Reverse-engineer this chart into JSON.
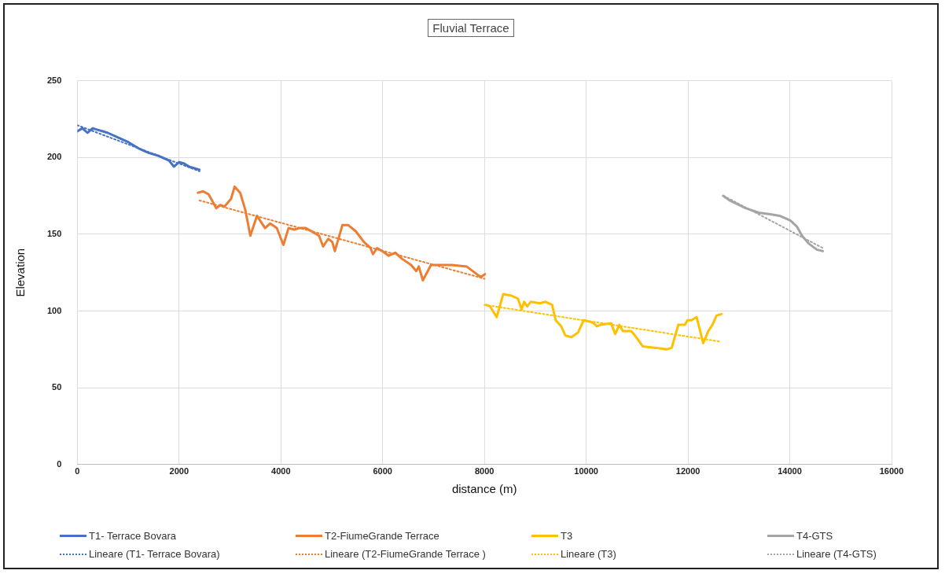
{
  "chart_data": {
    "type": "line",
    "title": "Fluvial Terrace",
    "xlabel": "distance (m)",
    "ylabel": "Elevation",
    "xlim": [
      0,
      16000
    ],
    "xticks": [
      0,
      2000,
      4000,
      6000,
      8000,
      10000,
      12000,
      14000,
      16000
    ],
    "ylim": [
      0,
      250
    ],
    "yticks": [
      0,
      50,
      100,
      150,
      200,
      250
    ],
    "grid": true,
    "legend": "bottom",
    "marker": "none",
    "line_style": "solid",
    "series": [
      {
        "name": "T1- Terrace Bovara",
        "color": "#4472c4",
        "x": [
          0,
          100,
          200,
          300,
          400,
          500,
          600,
          800,
          1000,
          1200,
          1400,
          1600,
          1800,
          1900,
          2000,
          2100,
          2200,
          2400
        ],
        "values": [
          217,
          219,
          216,
          219,
          218,
          217,
          216,
          213,
          210,
          206,
          203,
          201,
          198,
          194,
          197,
          196,
          194,
          192
        ]
      },
      {
        "name": "T2-FiumeGrande Terrace",
        "color": "#ed7d31",
        "x": [
          2370,
          2470,
          2580,
          2730,
          2810,
          2890,
          3020,
          3090,
          3200,
          3300,
          3400,
          3530,
          3690,
          3790,
          3920,
          4050,
          4150,
          4260,
          4360,
          4490,
          4650,
          4750,
          4830,
          4930,
          5010,
          5060,
          5210,
          5320,
          5470,
          5630,
          5760,
          5810,
          5890,
          5990,
          6120,
          6250,
          6380,
          6560,
          6660,
          6710,
          6790,
          6950,
          7130,
          7360,
          7650,
          7850,
          7930,
          8010
        ],
        "values": [
          177,
          178,
          176,
          167,
          169,
          168,
          173,
          181,
          177,
          166,
          149,
          162,
          154,
          157,
          154,
          143,
          154,
          153,
          154,
          154,
          151,
          149,
          142,
          147,
          145,
          139,
          156,
          156,
          152,
          145,
          141,
          137,
          141,
          139,
          136,
          138,
          134,
          130,
          126,
          129,
          120,
          130,
          130,
          130,
          129,
          124,
          122,
          124
        ]
      },
      {
        "name": "T3",
        "color": "#ffc000",
        "x": [
          8030,
          8110,
          8240,
          8370,
          8530,
          8660,
          8730,
          8780,
          8840,
          8910,
          9090,
          9200,
          9330,
          9400,
          9510,
          9590,
          9710,
          9840,
          9950,
          10080,
          10150,
          10210,
          10280,
          10490,
          10570,
          10650,
          10720,
          10880,
          10960,
          11110,
          11370,
          11580,
          11680,
          11810,
          11940,
          11990,
          12070,
          12170,
          12300,
          12400,
          12480,
          12560,
          12660
        ],
        "values": [
          104,
          103,
          96,
          111,
          110,
          108,
          101,
          106,
          103,
          106,
          105,
          106,
          104,
          94,
          90,
          84,
          83,
          86,
          94,
          93,
          92,
          90,
          91,
          92,
          85,
          91,
          87,
          87,
          84,
          77,
          76,
          75,
          76,
          91,
          91,
          94,
          94,
          96,
          79,
          87,
          91,
          97,
          98
        ]
      },
      {
        "name": "T4-GTS",
        "color": "#a5a5a5",
        "x": [
          12690,
          12820,
          13130,
          13390,
          13620,
          13800,
          14010,
          14140,
          14240,
          14370,
          14530,
          14650
        ],
        "values": [
          175,
          172,
          167,
          164,
          163,
          162,
          159,
          155,
          149,
          144,
          140,
          139
        ]
      },
      {
        "name": "Lineare (T1- Terrace Bovara)",
        "color": "#4472c4",
        "line_style": "dotted",
        "x": [
          0,
          2400
        ],
        "values": [
          221,
          191
        ]
      },
      {
        "name": "Lineare (T2-FiumeGrande Terrace )",
        "color": "#ed7d31",
        "line_style": "dotted",
        "x": [
          2400,
          8000
        ],
        "values": [
          172,
          121
        ]
      },
      {
        "name": "Lineare (T3)",
        "color": "#ffc000",
        "line_style": "dotted",
        "x": [
          8000,
          12650
        ],
        "values": [
          104,
          80
        ]
      },
      {
        "name": "Lineare (T4-GTS)",
        "color": "#a5a5a5",
        "line_style": "dotted",
        "x": [
          12700,
          14650
        ],
        "values": [
          175,
          141
        ]
      }
    ]
  }
}
